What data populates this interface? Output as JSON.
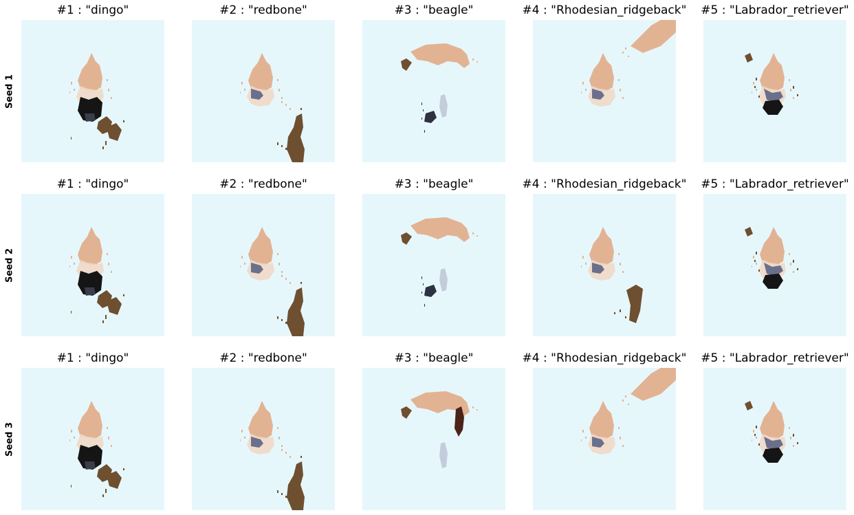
{
  "figure": {
    "rows": [
      {
        "label": "Seed 1",
        "panels": [
          {
            "title": "#1 : \"dingo\"",
            "kind": "dingo",
            "variant": 1
          },
          {
            "title": "#2 : \"redbone\"",
            "kind": "redbone",
            "variant": 1
          },
          {
            "title": "#3 : \"beagle\"",
            "kind": "beagle",
            "variant": 1
          },
          {
            "title": "#4 : \"Rhodesian_ridgeback\"",
            "kind": "ridgeback",
            "variant": 1
          },
          {
            "title": "#5 : \"Labrador_retriever\"",
            "kind": "labrador",
            "variant": 1
          }
        ]
      },
      {
        "label": "Seed 2",
        "panels": [
          {
            "title": "#1 : \"dingo\"",
            "kind": "dingo",
            "variant": 2
          },
          {
            "title": "#2 : \"redbone\"",
            "kind": "redbone",
            "variant": 2
          },
          {
            "title": "#3 : \"beagle\"",
            "kind": "beagle",
            "variant": 2
          },
          {
            "title": "#4 : \"Rhodesian_ridgeback\"",
            "kind": "ridgeback",
            "variant": 2
          },
          {
            "title": "#5 : \"Labrador_retriever\"",
            "kind": "labrador",
            "variant": 2
          }
        ]
      },
      {
        "label": "Seed 3",
        "panels": [
          {
            "title": "#1 : \"dingo\"",
            "kind": "dingo",
            "variant": 3
          },
          {
            "title": "#2 : \"redbone\"",
            "kind": "redbone",
            "variant": 3
          },
          {
            "title": "#3 : \"beagle\"",
            "kind": "beagle",
            "variant": 3
          },
          {
            "title": "#4 : \"Rhodesian_ridgeback\"",
            "kind": "ridgeback",
            "variant": 3
          },
          {
            "title": "#5 : \"Labrador_retriever\"",
            "kind": "labrador",
            "variant": 3
          }
        ]
      }
    ]
  },
  "colors": {
    "panel_background": "#e6f7fc",
    "skin": "#e2b393",
    "shadow_blue": "#6a708c",
    "dark": "#151515",
    "brown": "#6e4f2f",
    "pale_blue": "#c4ccdc"
  }
}
